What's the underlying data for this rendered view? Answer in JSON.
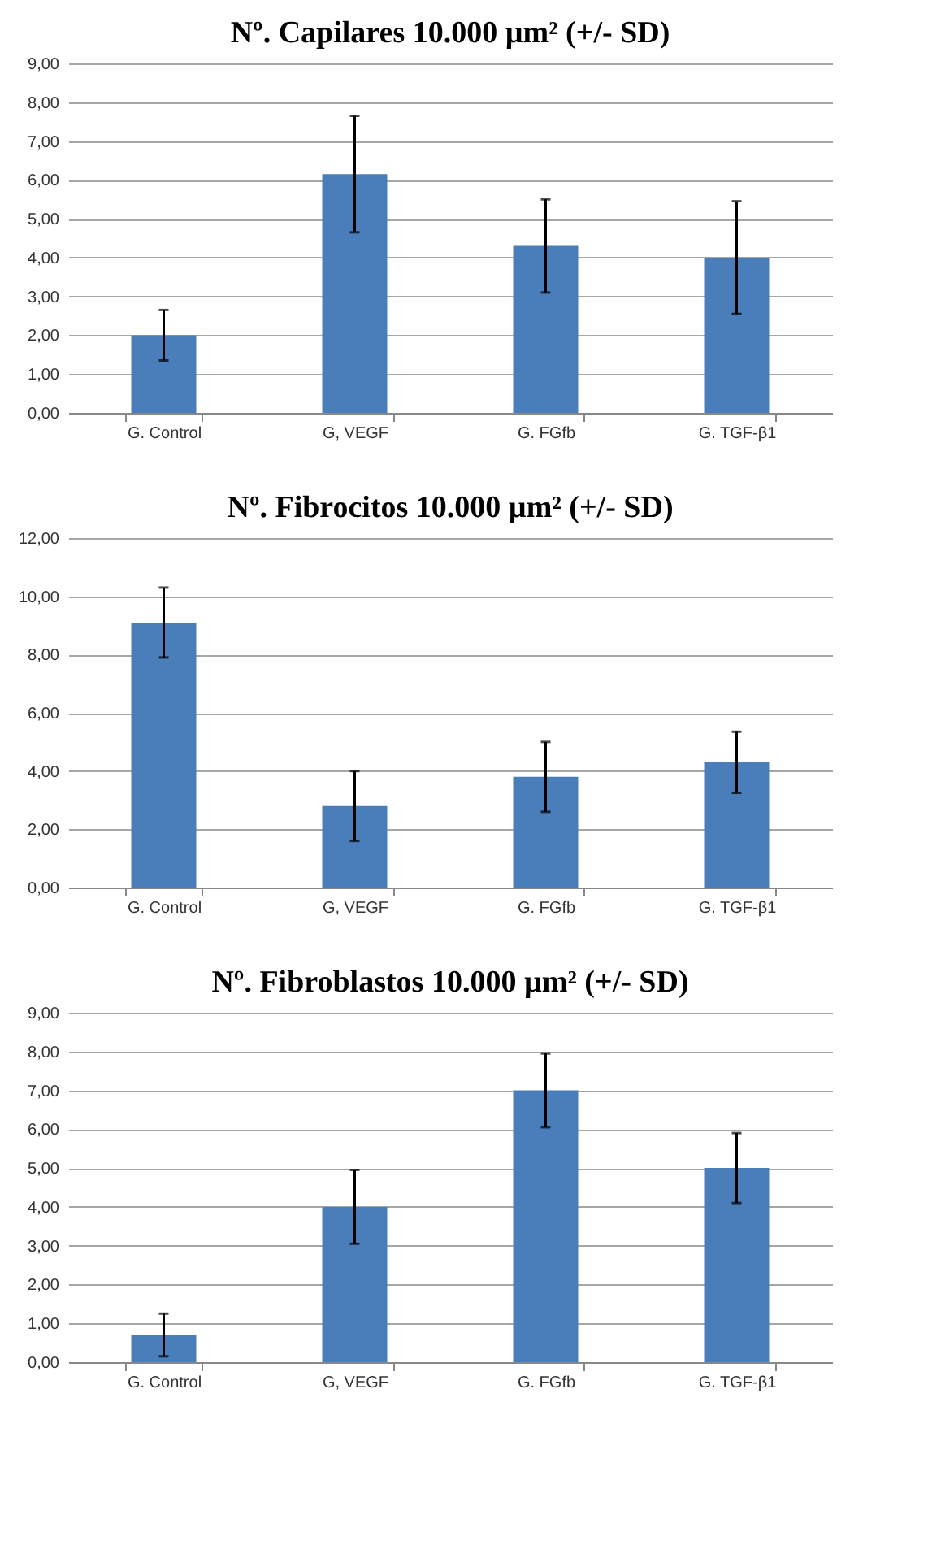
{
  "chart_data": [
    {
      "type": "bar",
      "title": "Nº. Capilares 10.000 µm² (+/- SD)",
      "categories": [
        "G. Control",
        "G, VEGF",
        "G. FGfb",
        "G. TGF-β1"
      ],
      "values": [
        2.0,
        6.15,
        4.3,
        4.0
      ],
      "errors": [
        0.65,
        1.5,
        1.2,
        1.45
      ],
      "color": "#4a7ebb",
      "ylim": [
        0,
        9
      ],
      "yticks": [
        {
          "value": 0,
          "label": "0,00"
        },
        {
          "value": 1,
          "label": "1,00"
        },
        {
          "value": 2,
          "label": "2,00"
        },
        {
          "value": 3,
          "label": "3,00"
        },
        {
          "value": 4,
          "label": "4,00"
        },
        {
          "value": 5,
          "label": "5,00"
        },
        {
          "value": 6,
          "label": "6,00"
        },
        {
          "value": 7,
          "label": "7,00"
        },
        {
          "value": 8,
          "label": "8,00"
        },
        {
          "value": 9,
          "label": "9,00"
        }
      ],
      "grid": "y"
    },
    {
      "type": "bar",
      "title": "Nº. Fibrocitos 10.000 µm² (+/- SD)",
      "categories": [
        "G. Control",
        "G, VEGF",
        "G. FGfb",
        "G. TGF-β1"
      ],
      "values": [
        9.1,
        2.8,
        3.8,
        4.3
      ],
      "errors": [
        1.2,
        1.2,
        1.2,
        1.05
      ],
      "color": "#4a7ebb",
      "ylim": [
        0,
        12
      ],
      "yticks": [
        {
          "value": 0,
          "label": "0,00"
        },
        {
          "value": 2,
          "label": "2,00"
        },
        {
          "value": 4,
          "label": "4,00"
        },
        {
          "value": 6,
          "label": "6,00"
        },
        {
          "value": 8,
          "label": "8,00"
        },
        {
          "value": 10,
          "label": "10,00"
        },
        {
          "value": 12,
          "label": "12,00"
        }
      ],
      "grid": "y"
    },
    {
      "type": "bar",
      "title": "Nº. Fibroblastos 10.000 µm² (+/- SD)",
      "categories": [
        "G. Control",
        "G, VEGF",
        "G. FGfb",
        "G. TGF-β1"
      ],
      "values": [
        0.7,
        4.0,
        7.0,
        5.0
      ],
      "errors": [
        0.55,
        0.95,
        0.95,
        0.9
      ],
      "color": "#4a7ebb",
      "ylim": [
        0,
        9
      ],
      "yticks": [
        {
          "value": 0,
          "label": "0,00"
        },
        {
          "value": 1,
          "label": "1,00"
        },
        {
          "value": 2,
          "label": "2,00"
        },
        {
          "value": 3,
          "label": "3,00"
        },
        {
          "value": 4,
          "label": "4,00"
        },
        {
          "value": 5,
          "label": "5,00"
        },
        {
          "value": 6,
          "label": "6,00"
        },
        {
          "value": 7,
          "label": "7,00"
        },
        {
          "value": 8,
          "label": "8,00"
        },
        {
          "value": 9,
          "label": "9,00"
        }
      ],
      "grid": "y"
    }
  ]
}
